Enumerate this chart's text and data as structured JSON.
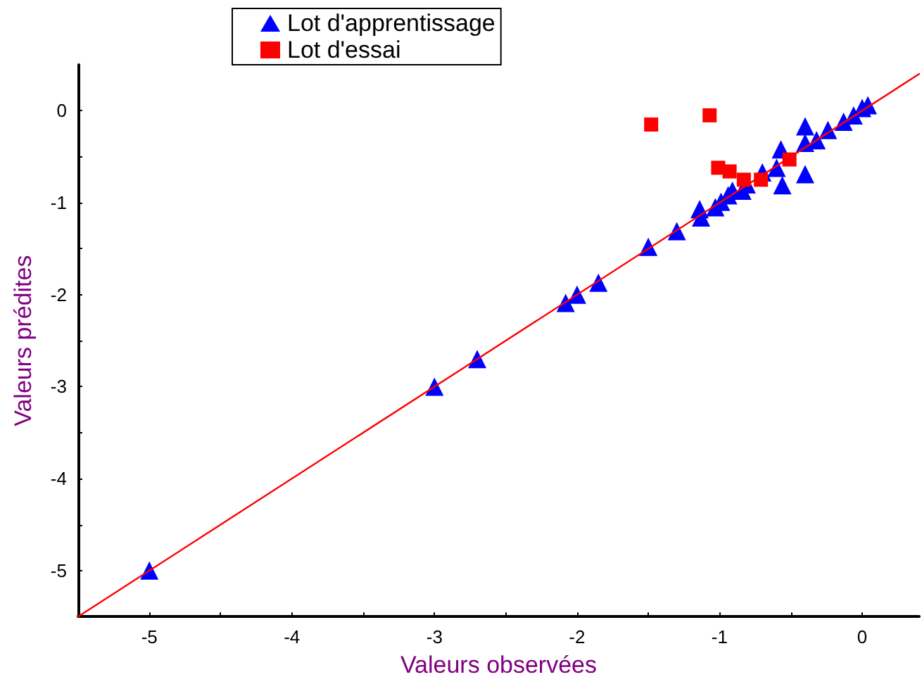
{
  "chart_data": {
    "type": "scatter",
    "xlabel": "Valeurs observées",
    "ylabel": "Valeurs prédites",
    "xlim": [
      -5.5,
      0.4
    ],
    "ylim": [
      -5.5,
      0.5
    ],
    "xticks": [
      {
        "value": -5.5,
        "label": null
      },
      -5,
      {
        "value": -4.5,
        "label": null
      },
      -4,
      {
        "value": -3.5,
        "label": null
      },
      -3,
      {
        "value": -2.5,
        "label": null
      },
      -2,
      {
        "value": -1.5,
        "label": null
      },
      -1,
      {
        "value": -0.5,
        "label": null
      },
      0
    ],
    "yticks": [
      -5,
      {
        "value": -4.5,
        "label": null
      },
      -4,
      {
        "value": -3.5,
        "label": null
      },
      -3,
      {
        "value": -2.5,
        "label": null
      },
      -2,
      {
        "value": -1.5,
        "label": null
      },
      -1,
      {
        "value": -0.5,
        "label": null
      },
      0
    ],
    "grid": false,
    "legend": "top",
    "series": [
      {
        "name": "Lot d'apprentissage",
        "color": "#0000ff",
        "marker": "triangle",
        "x": [
          -5,
          -3,
          -2.7,
          -2.08,
          -2,
          -1.85,
          -1.5,
          -1.3,
          -1.14,
          -1.13,
          -1.03,
          -0.99,
          -0.94,
          -0.91,
          -0.84,
          -0.81,
          -0.7,
          -0.6,
          -0.57,
          -0.56,
          -0.4,
          -0.4,
          -0.4,
          -0.32,
          -0.24,
          -0.13,
          -0.06,
          0,
          0.04
        ],
        "values": [
          -5,
          -3,
          -2.7,
          -2.09,
          -2,
          -1.87,
          -1.48,
          -1.31,
          -1.07,
          -1.16,
          -1.05,
          -0.99,
          -0.92,
          -0.87,
          -0.87,
          -0.8,
          -0.67,
          -0.62,
          -0.42,
          -0.81,
          -0.17,
          -0.69,
          -0.35,
          -0.32,
          -0.21,
          -0.12,
          -0.05,
          0.03,
          0.06
        ]
      },
      {
        "name": "Lot d'essai",
        "color": "#ff0000",
        "marker": "square",
        "x": [
          -1.48,
          -1.07,
          -1.01,
          -0.93,
          -0.83,
          -0.71,
          -0.51
        ],
        "values": [
          -0.15,
          -0.05,
          -0.62,
          -0.66,
          -0.75,
          -0.75,
          -0.53
        ]
      },
      {
        "type": "line",
        "color": "#ff0000",
        "marker": "none",
        "line_style": "solid",
        "x": [
          -5.5,
          0.4
        ],
        "values": [
          -5.5,
          0.4
        ]
      }
    ]
  }
}
